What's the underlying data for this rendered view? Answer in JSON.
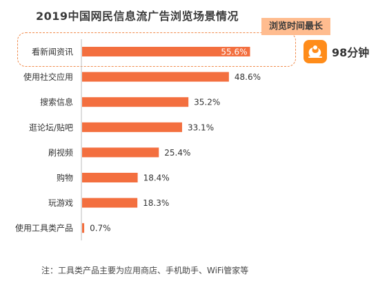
{
  "title": "2019中国网民信息流广告浏览场景情况",
  "callout": {
    "label": "浏览时间最长",
    "duration": "98分钟",
    "icon": "uc-browser-squirrel-icon"
  },
  "note": "注：工具类产品主要为应用商店、手机助手、WiFi管家等",
  "colors": {
    "bar": "#f36f3f",
    "callout_bg": "#ffbc8f",
    "highlight_border": "#f08a4b",
    "logo_bg": "#ff8c1a"
  },
  "chart_data": {
    "type": "bar",
    "orientation": "horizontal",
    "title": "2019中国网民信息流广告浏览场景情况",
    "categories": [
      "看新闻资讯",
      "使用社交应用",
      "搜索信息",
      "逛论坛/贴吧",
      "刷视频",
      "购物",
      "玩游戏",
      "使用工具类产品"
    ],
    "values": [
      55.6,
      48.6,
      35.2,
      33.1,
      25.4,
      18.4,
      18.3,
      0.7
    ],
    "value_labels": [
      "55.6%",
      "48.6%",
      "35.2%",
      "33.1%",
      "25.4%",
      "18.4%",
      "18.3%",
      "0.7%"
    ],
    "unit": "%",
    "xlim": [
      0,
      60
    ],
    "grid": false,
    "legend": "none"
  }
}
